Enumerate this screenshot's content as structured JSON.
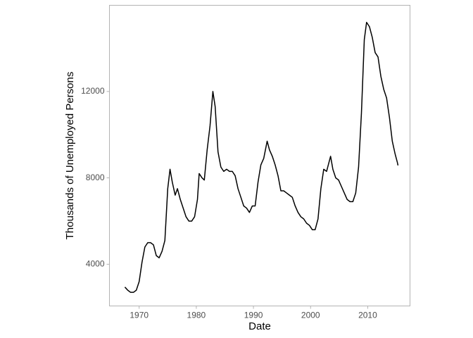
{
  "chart_data": {
    "type": "line",
    "xlabel": "Date",
    "ylabel": "Thousands of Unemployed Persons",
    "x": [
      1967.5,
      1968.0,
      1968.5,
      1969.0,
      1969.5,
      1970.0,
      1970.5,
      1971.0,
      1971.5,
      1972.0,
      1972.5,
      1973.0,
      1973.5,
      1974.0,
      1974.5,
      1975.0,
      1975.4,
      1975.8,
      1976.3,
      1976.7,
      1977.2,
      1977.7,
      1978.2,
      1978.7,
      1979.2,
      1979.7,
      1980.2,
      1980.5,
      1981.0,
      1981.4,
      1981.9,
      1982.4,
      1982.9,
      1983.3,
      1983.8,
      1984.3,
      1984.8,
      1985.3,
      1985.8,
      1986.3,
      1986.8,
      1987.3,
      1987.8,
      1988.3,
      1988.8,
      1989.3,
      1989.8,
      1990.3,
      1990.8,
      1991.3,
      1991.8,
      1992.4,
      1992.8,
      1993.3,
      1993.8,
      1994.3,
      1994.8,
      1995.3,
      1995.8,
      1996.3,
      1996.8,
      1997.3,
      1997.8,
      1998.3,
      1998.8,
      1999.3,
      1999.8,
      2000.3,
      2000.8,
      2001.3,
      2001.8,
      2002.3,
      2002.8,
      2003.5,
      2003.9,
      2004.4,
      2004.9,
      2005.4,
      2005.9,
      2006.4,
      2006.9,
      2007.4,
      2007.9,
      2008.4,
      2008.9,
      2009.4,
      2009.8,
      2010.3,
      2010.8,
      2011.3,
      2011.8,
      2012.3,
      2012.8,
      2013.3,
      2013.8,
      2014.3,
      2014.8,
      2015.2,
      2015.3
    ],
    "values": [
      2944,
      2800,
      2700,
      2700,
      2800,
      3200,
      4100,
      4800,
      5000,
      5000,
      4900,
      4400,
      4300,
      4600,
      5100,
      7500,
      8400,
      7800,
      7200,
      7500,
      7000,
      6600,
      6200,
      6000,
      6000,
      6200,
      7000,
      8200,
      8000,
      7900,
      9300,
      10400,
      12000,
      11300,
      9200,
      8500,
      8300,
      8400,
      8300,
      8300,
      8100,
      7500,
      7100,
      6700,
      6600,
      6400,
      6700,
      6700,
      7800,
      8600,
      8900,
      9700,
      9300,
      9000,
      8600,
      8100,
      7400,
      7400,
      7300,
      7200,
      7100,
      6700,
      6400,
      6200,
      6100,
      5900,
      5800,
      5600,
      5600,
      6100,
      7500,
      8400,
      8300,
      9000,
      8400,
      8000,
      7900,
      7600,
      7300,
      7000,
      6900,
      6900,
      7300,
      8500,
      11000,
      14400,
      15200,
      15000,
      14500,
      13800,
      13600,
      12700,
      12100,
      11700,
      10800,
      9700,
      9100,
      8700,
      8575
    ],
    "color": "#000000",
    "xlim": [
      1964.8,
      2017.4
    ],
    "xticks": [
      1970,
      1980,
      1990,
      2000,
      2010
    ],
    "ylim": [
      2070,
      15990
    ],
    "yticks": [
      4000,
      8000,
      12000
    ],
    "grid": false
  }
}
